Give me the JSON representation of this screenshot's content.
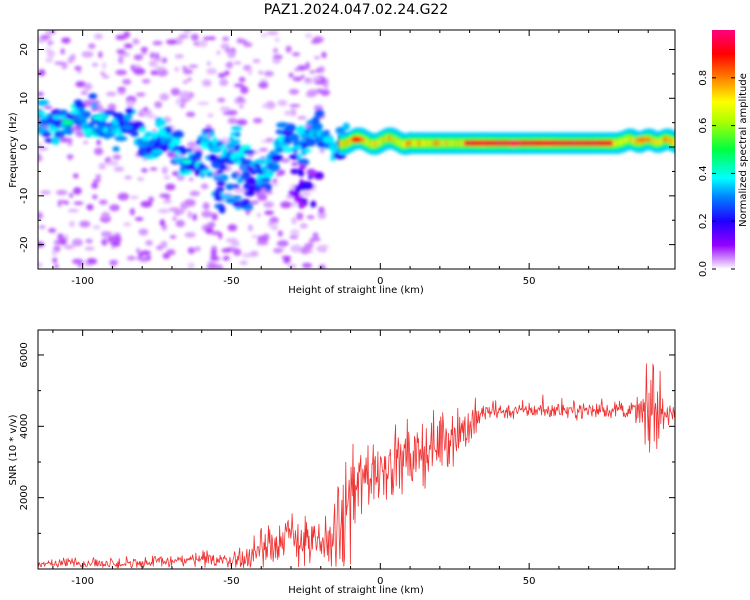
{
  "title": "PAZ1.2024.047.02.24.G22",
  "chart_data": [
    {
      "type": "heatmap",
      "xlabel": "Height of straight line (km)",
      "ylabel": "Frequency (Hz)",
      "xlim": [
        -115,
        99
      ],
      "ylim": [
        -25,
        24
      ],
      "x_ticks": [
        -100,
        -50,
        0,
        50
      ],
      "x_tick_labels": [
        "-100",
        "-50",
        "0",
        "50"
      ],
      "y_ticks": [
        -20,
        -10,
        0,
        10,
        20
      ],
      "y_tick_labels": [
        "-20",
        "-10",
        "0",
        "10",
        "20"
      ],
      "colorbar": {
        "label": "Normalized spectral amplitude",
        "range": [
          0,
          1
        ],
        "ticks": [
          0.0,
          0.2,
          0.4,
          0.6,
          0.8
        ],
        "tick_labels": [
          "0.0",
          "0.2",
          "0.4",
          "0.6",
          "0.8"
        ],
        "colormap": "gist_rainbow_r"
      },
      "features": [
        {
          "x": -105,
          "y": 5,
          "amplitude": 0.45
        },
        {
          "x": -95,
          "y": 6,
          "amplitude": 0.4
        },
        {
          "x": -85,
          "y": 4,
          "amplitude": 0.3
        },
        {
          "x": -75,
          "y": -1,
          "amplitude": 0.35
        },
        {
          "x": -65,
          "y": -3,
          "amplitude": 0.4
        },
        {
          "x": -55,
          "y": -0.5,
          "amplitude": 0.35
        },
        {
          "x": -50,
          "y": -11,
          "amplitude": 0.3
        },
        {
          "x": -40,
          "y": -3,
          "amplitude": 0.35
        },
        {
          "x": -33,
          "y": 4.5,
          "amplitude": 0.3
        },
        {
          "x": -25,
          "y": -8,
          "amplitude": 0.2
        },
        {
          "x": -8,
          "y": 1.5,
          "amplitude": 0.9
        },
        {
          "x": 45,
          "y": 0.7,
          "amplitude": 0.97
        },
        {
          "x": 88,
          "y": 1.5,
          "amplitude": 0.8
        }
      ],
      "grid": false
    },
    {
      "type": "line",
      "xlabel": "Height of straight line (km)",
      "ylabel": "SNR (10 * v/v)",
      "xlim": [
        -115,
        99
      ],
      "ylim": [
        0,
        6700
      ],
      "x_ticks": [
        -100,
        -50,
        0,
        50
      ],
      "x_tick_labels": [
        "-100",
        "-50",
        "0",
        "50"
      ],
      "y_ticks": [
        2000,
        4000,
        6000
      ],
      "y_tick_labels": [
        "2000",
        "4000",
        "6000"
      ],
      "color": "#f03232",
      "series_envelope": [
        {
          "x": -115,
          "y": 150
        },
        {
          "x": -90,
          "y": 150
        },
        {
          "x": -60,
          "y": 250
        },
        {
          "x": -45,
          "y": 250
        },
        {
          "x": -38,
          "y": 700
        },
        {
          "x": -30,
          "y": 900
        },
        {
          "x": -20,
          "y": 600
        },
        {
          "x": -13,
          "y": 1200
        },
        {
          "x": -10,
          "y": 2000
        },
        {
          "x": -5,
          "y": 2600
        },
        {
          "x": 0,
          "y": 2900
        },
        {
          "x": 10,
          "y": 3000
        },
        {
          "x": 20,
          "y": 3600
        },
        {
          "x": 30,
          "y": 4000
        },
        {
          "x": 35,
          "y": 4400
        },
        {
          "x": 50,
          "y": 4450
        },
        {
          "x": 70,
          "y": 4450
        },
        {
          "x": 85,
          "y": 4450
        },
        {
          "x": 90,
          "y": 4300
        },
        {
          "x": 99,
          "y": 4400
        }
      ],
      "noise_amplitude": [
        {
          "x": -115,
          "y": 120
        },
        {
          "x": -50,
          "y": 200
        },
        {
          "x": -38,
          "y": 550
        },
        {
          "x": -20,
          "y": 600
        },
        {
          "x": -10,
          "y": 1500
        },
        {
          "x": 0,
          "y": 900
        },
        {
          "x": 30,
          "y": 700
        },
        {
          "x": 35,
          "y": 200
        },
        {
          "x": 85,
          "y": 200
        },
        {
          "x": 92,
          "y": 1300
        },
        {
          "x": 95,
          "y": 300
        },
        {
          "x": 99,
          "y": 200
        }
      ],
      "grid": false
    }
  ]
}
